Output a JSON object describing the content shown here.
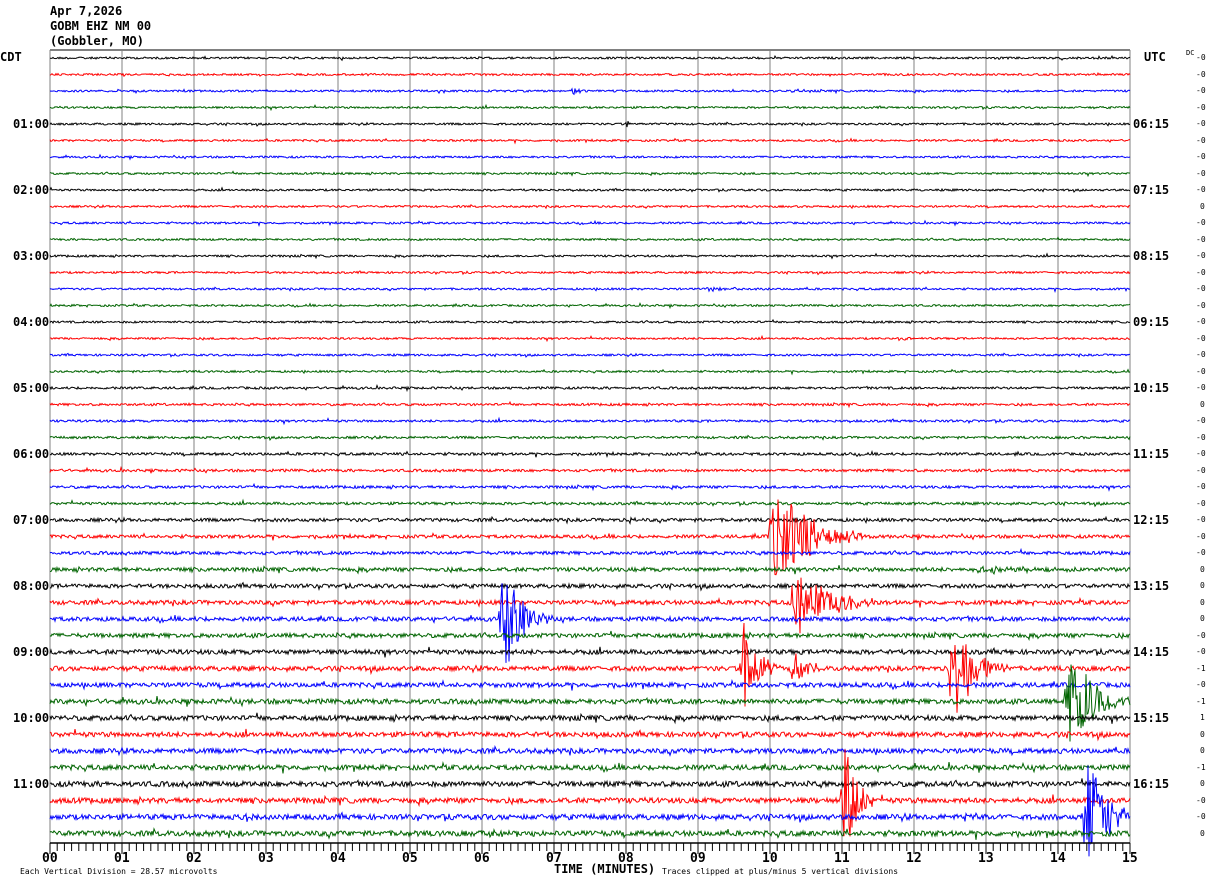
{
  "header": {
    "date": "Apr 7,2026",
    "station": "GOBM EHZ NM 00",
    "location": "(Gobbler, MO)"
  },
  "chart_data": {
    "type": "line",
    "subtype": "helicorder",
    "xlabel": "TIME (MINUTES)",
    "xlim": [
      0,
      15
    ],
    "x_tick_labels": [
      "00",
      "01",
      "02",
      "03",
      "04",
      "05",
      "06",
      "07",
      "08",
      "09",
      "10",
      "11",
      "12",
      "13",
      "14",
      "15"
    ],
    "minor_ticks_per_minute": 10,
    "left_timezone": "CDT",
    "right_timezone": "UTC",
    "left_hour_labels": [
      "01:00",
      "02:00",
      "03:00",
      "04:00",
      "05:00",
      "06:00",
      "07:00",
      "08:00",
      "09:00",
      "10:00",
      "11:00"
    ],
    "right_hour_labels": [
      "06:15",
      "07:15",
      "08:15",
      "09:15",
      "10:15",
      "11:15",
      "12:15",
      "13:15",
      "14:15",
      "15:15",
      "16:15"
    ],
    "rows": 48,
    "minutes_per_row": 15,
    "trace_colors": [
      "#000000",
      "#ff0000",
      "#0000ff",
      "#006400"
    ],
    "grid": true,
    "grid_color": "#808080",
    "dc_label": "DC",
    "dc_values": [
      "-0",
      "-0",
      "-0",
      "-0",
      "-0",
      "-0",
      "-0",
      "-0",
      "-0",
      "0",
      "-0",
      "-0",
      "-0",
      "-0",
      "-0",
      "-0",
      "-0",
      "-0",
      "-0",
      "-0",
      "-0",
      "0",
      "-0",
      "-0",
      "-0",
      "-0",
      "-0",
      "-0",
      "-0",
      "-0",
      "-0",
      "0",
      "0",
      "0",
      "0",
      "-0",
      "-0",
      "-1",
      "-0",
      "-1",
      "1",
      "0",
      "0",
      "-1",
      "0",
      "-0",
      "-0",
      "0"
    ],
    "clip_divisions": 5,
    "noise_divisions": [
      0.06,
      0.06,
      0.06,
      0.06,
      0.06,
      0.06,
      0.06,
      0.06,
      0.06,
      0.06,
      0.06,
      0.06,
      0.06,
      0.06,
      0.06,
      0.06,
      0.06,
      0.06,
      0.06,
      0.06,
      0.07,
      0.07,
      0.07,
      0.07,
      0.08,
      0.08,
      0.08,
      0.08,
      0.1,
      0.1,
      0.1,
      0.12,
      0.12,
      0.13,
      0.13,
      0.13,
      0.14,
      0.14,
      0.14,
      0.15,
      0.15,
      0.15,
      0.15,
      0.15,
      0.16,
      0.16,
      0.16,
      0.16
    ],
    "events": [
      {
        "row": 2,
        "minute": 7.25,
        "duration": 0.15,
        "amplitude": 0.35
      },
      {
        "row": 4,
        "minute": 8.0,
        "duration": 0.1,
        "amplitude": 0.3
      },
      {
        "row": 14,
        "minute": 9.1,
        "duration": 0.5,
        "amplitude": 0.2
      },
      {
        "row": 17,
        "minute": 11.8,
        "duration": 0.1,
        "amplitude": 0.4
      },
      {
        "row": 28,
        "minute": 8.05,
        "duration": 0.1,
        "amplitude": 0.4
      },
      {
        "row": 29,
        "minute": 10.0,
        "duration": 0.9,
        "amplitude": 3.8
      },
      {
        "row": 31,
        "minute": 12.8,
        "duration": 1.4,
        "amplitude": 0.2
      },
      {
        "row": 33,
        "minute": 10.3,
        "duration": 0.8,
        "amplitude": 2.8
      },
      {
        "row": 34,
        "minute": 6.25,
        "duration": 0.45,
        "amplitude": 4.5
      },
      {
        "row": 37,
        "minute": 9.6,
        "duration": 0.35,
        "amplitude": 4.2
      },
      {
        "row": 37,
        "minute": 10.3,
        "duration": 0.25,
        "amplitude": 1.6
      },
      {
        "row": 37,
        "minute": 12.5,
        "duration": 0.5,
        "amplitude": 4.6
      },
      {
        "row": 39,
        "minute": 14.1,
        "duration": 0.7,
        "amplitude": 3.6
      },
      {
        "row": 45,
        "minute": 11.0,
        "duration": 0.3,
        "amplitude": 5
      },
      {
        "row": 46,
        "minute": 2.6,
        "duration": 0.4,
        "amplitude": 0.4
      },
      {
        "row": 46,
        "minute": 12.7,
        "duration": 0.3,
        "amplitude": 0.4
      },
      {
        "row": 46,
        "minute": 14.35,
        "duration": 0.5,
        "amplitude": 5
      },
      {
        "row": 47,
        "minute": 6.0,
        "duration": 0.8,
        "amplitude": 0.2
      }
    ]
  },
  "footer": {
    "scale_text": "Each Vertical Division =   28.57 microvolts",
    "clip_text": "Traces clipped at plus/minus 5 vertical divisions"
  }
}
